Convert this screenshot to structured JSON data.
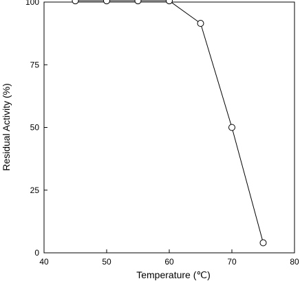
{
  "chart_data": {
    "type": "line",
    "title": "",
    "xlabel": "Temperature (℃)",
    "ylabel": "Residual Activity (%)",
    "xlim": [
      40,
      80
    ],
    "ylim": [
      0,
      100
    ],
    "xticks": [
      40,
      50,
      60,
      70,
      80
    ],
    "yticks": [
      0,
      25,
      50,
      75,
      100
    ],
    "grid": false,
    "series": [
      {
        "marker": "open-circle",
        "x": [
          45,
          50,
          55,
          60,
          65,
          70,
          75
        ],
        "y": [
          100.5,
          100.5,
          100.5,
          100.5,
          91.5,
          50,
          4
        ]
      }
    ],
    "colors": {
      "line": "#000000",
      "marker_fill": "#ffffff",
      "axis": "#000000"
    }
  }
}
